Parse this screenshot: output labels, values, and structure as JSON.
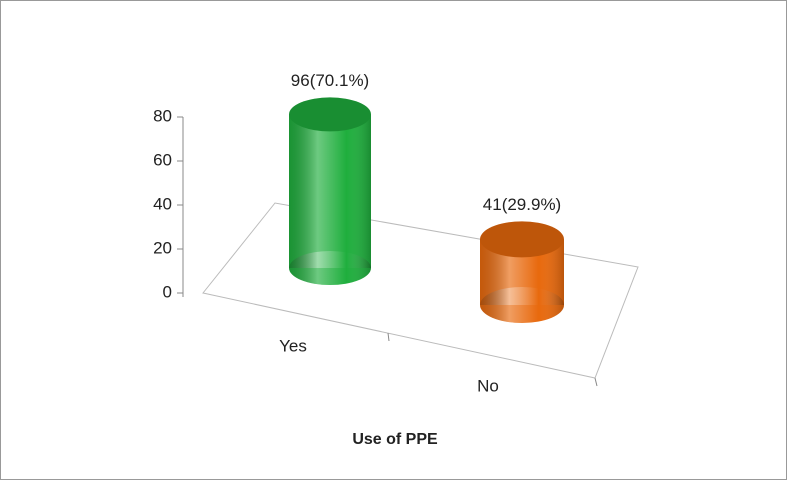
{
  "chart_data": {
    "type": "bar3d",
    "x_label": "Use of PPE",
    "categories": [
      "Yes",
      "No"
    ],
    "values": [
      96,
      41
    ],
    "value_labels": [
      "96(70.1%)",
      "41(29.9%)"
    ],
    "colors": [
      "#1fae3d",
      "#e8690d"
    ],
    "ylim": [
      0,
      80
    ],
    "yticks": [
      0,
      20,
      40,
      60,
      80
    ],
    "grid": false
  }
}
